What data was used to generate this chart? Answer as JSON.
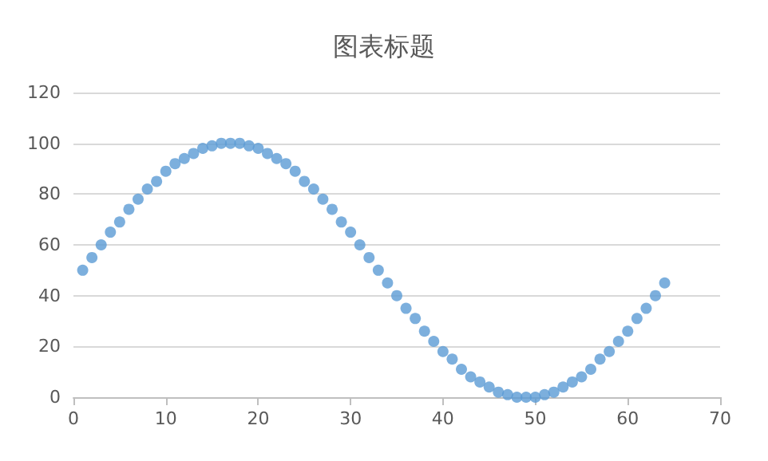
{
  "chart_data": {
    "type": "scatter",
    "title": "图表标题",
    "x": [
      1,
      2,
      3,
      4,
      5,
      6,
      7,
      8,
      9,
      10,
      11,
      12,
      13,
      14,
      15,
      16,
      17,
      18,
      19,
      20,
      21,
      22,
      23,
      24,
      25,
      26,
      27,
      28,
      29,
      30,
      31,
      32,
      33,
      34,
      35,
      36,
      37,
      38,
      39,
      40,
      41,
      42,
      43,
      44,
      45,
      46,
      47,
      48,
      49,
      50,
      51,
      52,
      53,
      54,
      55,
      56,
      57,
      58,
      59,
      60,
      61,
      62,
      63,
      64
    ],
    "series": [
      {
        "color": "#5b9bd5",
        "values": [
          50,
          55,
          60,
          65,
          69,
          74,
          78,
          82,
          85,
          89,
          92,
          94,
          96,
          98,
          99,
          100,
          100,
          100,
          99,
          98,
          96,
          94,
          92,
          89,
          85,
          82,
          78,
          74,
          69,
          65,
          60,
          55,
          50,
          45,
          40,
          35,
          31,
          26,
          22,
          18,
          15,
          11,
          8,
          6,
          4,
          2,
          1,
          0,
          0,
          0,
          1,
          2,
          4,
          6,
          8,
          11,
          15,
          18,
          22,
          26,
          31,
          35,
          40,
          45
        ]
      }
    ],
    "xlim": [
      0,
      70
    ],
    "xticks": [
      0,
      10,
      20,
      30,
      40,
      50,
      60,
      70
    ],
    "ylim": [
      0,
      120
    ],
    "yticks": [
      0,
      20,
      40,
      60,
      80,
      100,
      120
    ],
    "grid": "y",
    "marker": "circle"
  }
}
